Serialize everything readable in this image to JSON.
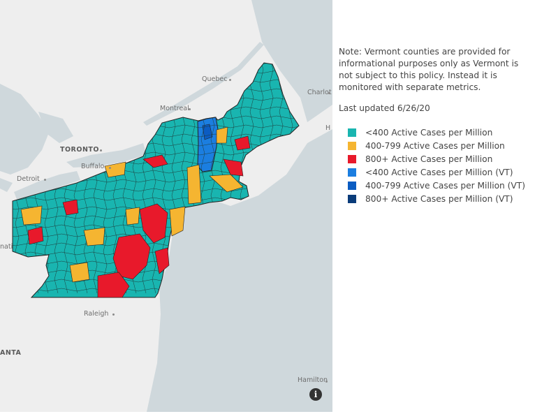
{
  "map": {
    "cities": [
      {
        "name": "Quebec",
        "style": "normal"
      },
      {
        "name": "Montreal",
        "style": "normal"
      },
      {
        "name": "Charlot",
        "style": "normal"
      },
      {
        "name": "TORONTO",
        "style": "bold"
      },
      {
        "name": "Buffalo",
        "style": "normal"
      },
      {
        "name": "Detroit",
        "style": "normal"
      },
      {
        "name": "nati",
        "style": "normal"
      },
      {
        "name": "Raleigh",
        "style": "normal"
      },
      {
        "name": "ANTA",
        "style": "bold"
      },
      {
        "name": "Hamilton",
        "style": "normal"
      },
      {
        "name": "H",
        "style": "normal"
      }
    ],
    "info_glyph": "i"
  },
  "side": {
    "note": "Note: Vermont counties are provided for informational purposes only as Vermont is not subject to this policy. Instead it is monitored with separate metrics.",
    "last_updated": "Last updated 6/26/20"
  },
  "legend": [
    {
      "label": "<400 Active Cases per Million",
      "color": "#19b5b0"
    },
    {
      "label": "400-799 Active Cases per Million",
      "color": "#f5b531"
    },
    {
      "label": "800+ Active Cases per Million",
      "color": "#e8192b"
    },
    {
      "label": "<400 Active Cases per Million (VT)",
      "color": "#1b7ee0"
    },
    {
      "label": "400-799 Active Cases per Million (VT)",
      "color": "#0b5cc2"
    },
    {
      "label": "800+ Active Cases per Million (VT)",
      "color": "#0a3c7a"
    }
  ]
}
